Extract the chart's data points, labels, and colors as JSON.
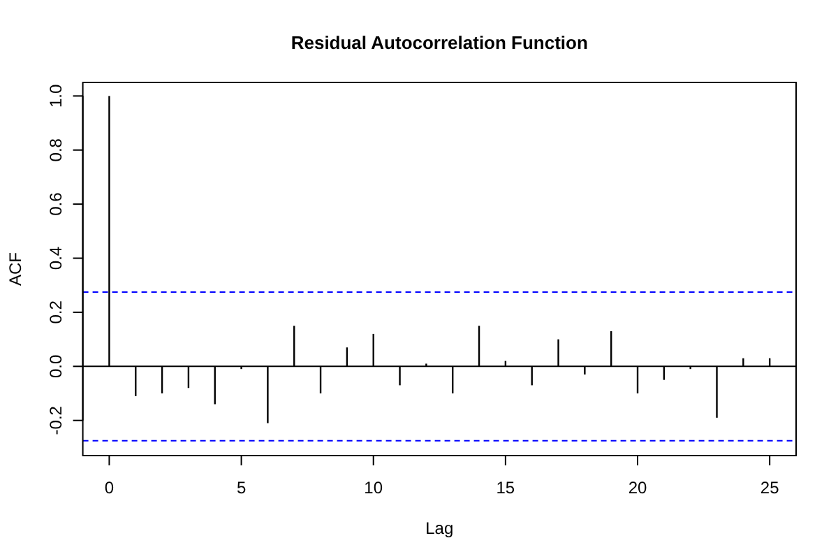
{
  "chart_data": {
    "type": "bar",
    "title": "Residual Autocorrelation Function",
    "xlabel": "Lag",
    "ylabel": "ACF",
    "x": [
      0,
      1,
      2,
      3,
      4,
      5,
      6,
      7,
      8,
      9,
      10,
      11,
      12,
      13,
      14,
      15,
      16,
      17,
      18,
      19,
      20,
      21,
      22,
      23,
      24,
      25
    ],
    "values": [
      1,
      -0.11,
      -0.1,
      -0.08,
      -0.14,
      -0.01,
      -0.21,
      0.15,
      -0.1,
      0.07,
      0.12,
      -0.07,
      0.01,
      -0.1,
      0.15,
      0.02,
      -0.07,
      0.1,
      -0.03,
      0.13,
      -0.1,
      -0.05,
      -0.01,
      -0.19,
      0.03,
      0.03
    ],
    "color": "#000000",
    "xlim": [
      -1,
      26
    ],
    "xticks": [
      0,
      5,
      10,
      15,
      20,
      25
    ],
    "ylim": [
      -0.33,
      1.05
    ],
    "yticks": [
      {
        "value": -0.2,
        "label": "-0.2"
      },
      {
        "value": 0,
        "label": "0.0"
      },
      {
        "value": 0.2,
        "label": "0.2"
      },
      {
        "value": 0.4,
        "label": "0.4"
      },
      {
        "value": 0.6,
        "label": "0.6"
      },
      {
        "value": 0.8,
        "label": "0.8"
      },
      {
        "value": 1,
        "label": "1.0"
      }
    ],
    "ref_lines": [
      {
        "axis": "y",
        "value": 0,
        "color": "#000000",
        "line_style": "solid"
      },
      {
        "axis": "y",
        "value": 0.275,
        "color": "#0000ff",
        "line_style": "dashed"
      },
      {
        "axis": "y",
        "value": -0.275,
        "color": "#0000ff",
        "line_style": "dashed"
      }
    ]
  }
}
